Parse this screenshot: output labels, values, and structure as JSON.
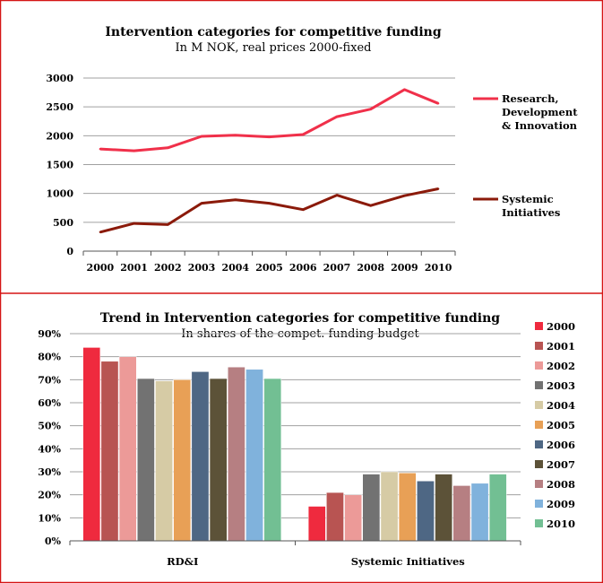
{
  "chart_data": [
    {
      "type": "line",
      "title": "Intervention categories for competitive funding",
      "subtitle": "In M NOK, real prices 2000-fixed",
      "x": [
        "2000",
        "2001",
        "2002",
        "2003",
        "2004",
        "2005",
        "2006",
        "2007",
        "2008",
        "2009",
        "2010"
      ],
      "ylim": [
        0,
        3000
      ],
      "yticks": [
        "0",
        "500",
        "1000",
        "1500",
        "2000",
        "2500",
        "3000"
      ],
      "grid": true,
      "legend_position": "right",
      "series": [
        {
          "name": "Research, Development & Innovation",
          "name_lines": [
            "Research,",
            "Development",
            "& Innovation"
          ],
          "color": "#f0304a",
          "values": [
            1770,
            1740,
            1790,
            1990,
            2010,
            1980,
            2020,
            2330,
            2460,
            2800,
            2560
          ]
        },
        {
          "name": "Systemic Initiatives",
          "name_lines": [
            "Systemic",
            "Initiatives"
          ],
          "color": "#8b1a0a",
          "values": [
            330,
            480,
            460,
            830,
            890,
            830,
            720,
            970,
            790,
            960,
            1080
          ]
        }
      ]
    },
    {
      "type": "bar",
      "title": "Trend in Intervention categories for competitive funding",
      "subtitle": "In shares of the compet. funding budget",
      "categories": [
        "RD&I",
        "Systemic Initiatives"
      ],
      "ylim": [
        0,
        90
      ],
      "yticks": [
        "0%",
        "10%",
        "20%",
        "30%",
        "40%",
        "50%",
        "60%",
        "70%",
        "80%",
        "90%"
      ],
      "grid": true,
      "legend_position": "right",
      "series": [
        {
          "name": "2000",
          "color": "#ef2a3e",
          "values": [
            84,
            15
          ]
        },
        {
          "name": "2001",
          "color": "#b85452",
          "values": [
            78,
            21
          ]
        },
        {
          "name": "2002",
          "color": "#ec9a98",
          "values": [
            80,
            20
          ]
        },
        {
          "name": "2003",
          "color": "#727272",
          "values": [
            70.5,
            29
          ]
        },
        {
          "name": "2004",
          "color": "#d6cba5",
          "values": [
            69.5,
            30
          ]
        },
        {
          "name": "2005",
          "color": "#e8a056",
          "values": [
            70,
            29.5
          ]
        },
        {
          "name": "2006",
          "color": "#4e6784",
          "values": [
            73.5,
            26
          ]
        },
        {
          "name": "2007",
          "color": "#5c5238",
          "values": [
            70.5,
            29
          ]
        },
        {
          "name": "2008",
          "color": "#b67f82",
          "values": [
            75.5,
            24
          ]
        },
        {
          "name": "2009",
          "color": "#80b2dc",
          "values": [
            74.5,
            25
          ]
        },
        {
          "name": "2010",
          "color": "#72bf93",
          "values": [
            70.5,
            29
          ]
        }
      ]
    }
  ],
  "colors": {
    "panel_border": "#d51515",
    "grid": "#a0a0a0"
  }
}
